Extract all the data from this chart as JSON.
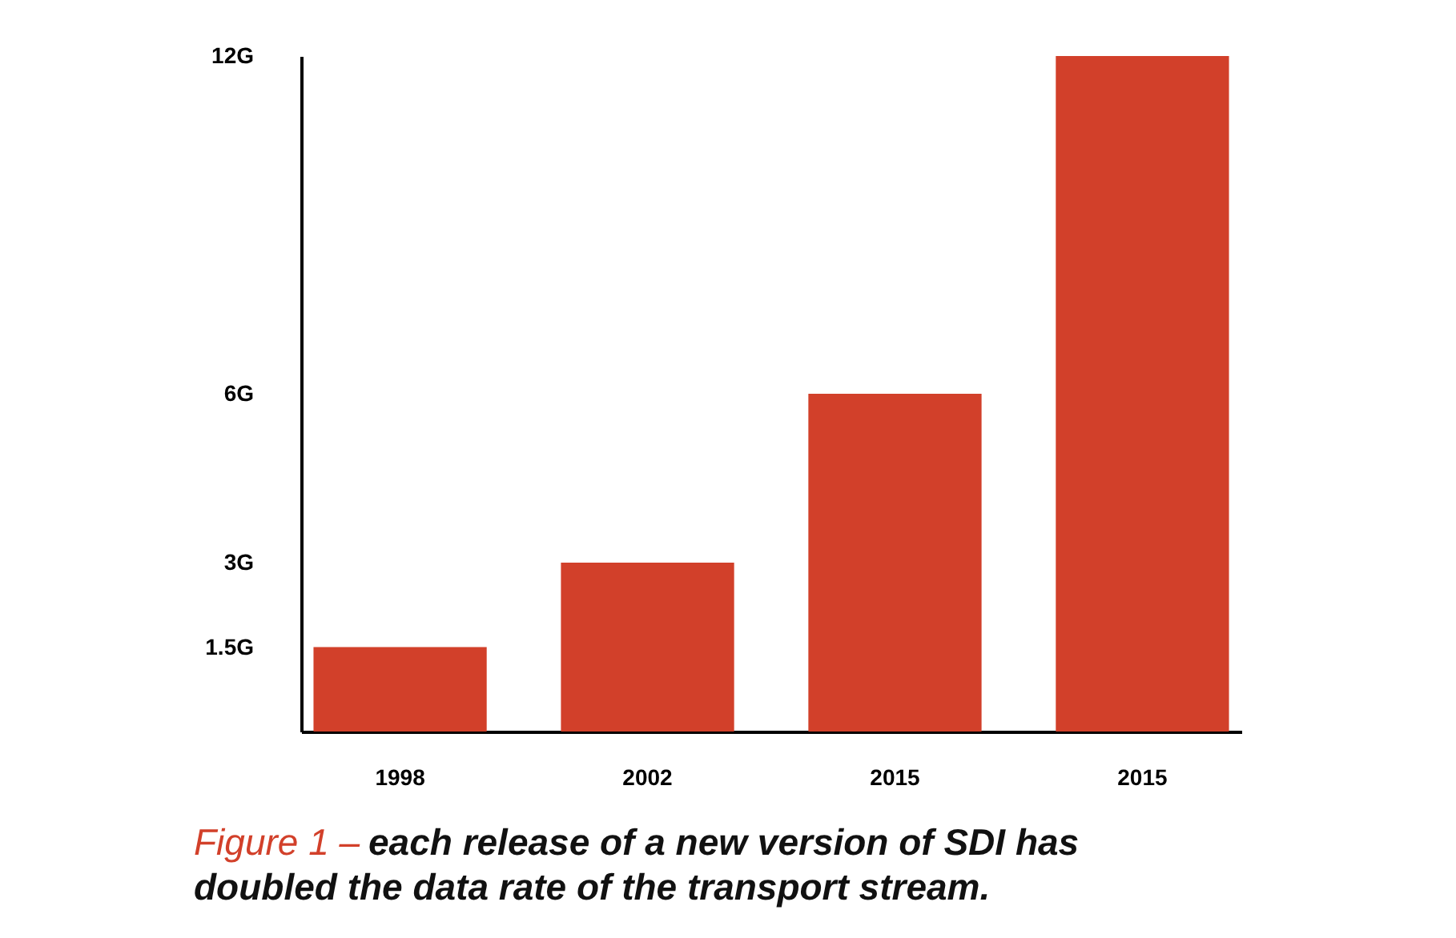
{
  "chart_data": {
    "type": "bar",
    "categories": [
      "1998",
      "2002",
      "2015",
      "2015"
    ],
    "values": [
      1.5,
      3,
      6,
      12
    ],
    "color": "#d2402a",
    "ylim": [
      0,
      12
    ],
    "yticks": [
      {
        "value": 1.5,
        "label": "1.5G"
      },
      {
        "value": 3,
        "label": "3G"
      },
      {
        "value": 6,
        "label": "6G"
      },
      {
        "value": 12,
        "label": "12G"
      }
    ],
    "grid": false,
    "annotations": [
      "Figure 1 –",
      "each release of a new version of SDI has doubled the data rate of the transport stream."
    ]
  }
}
